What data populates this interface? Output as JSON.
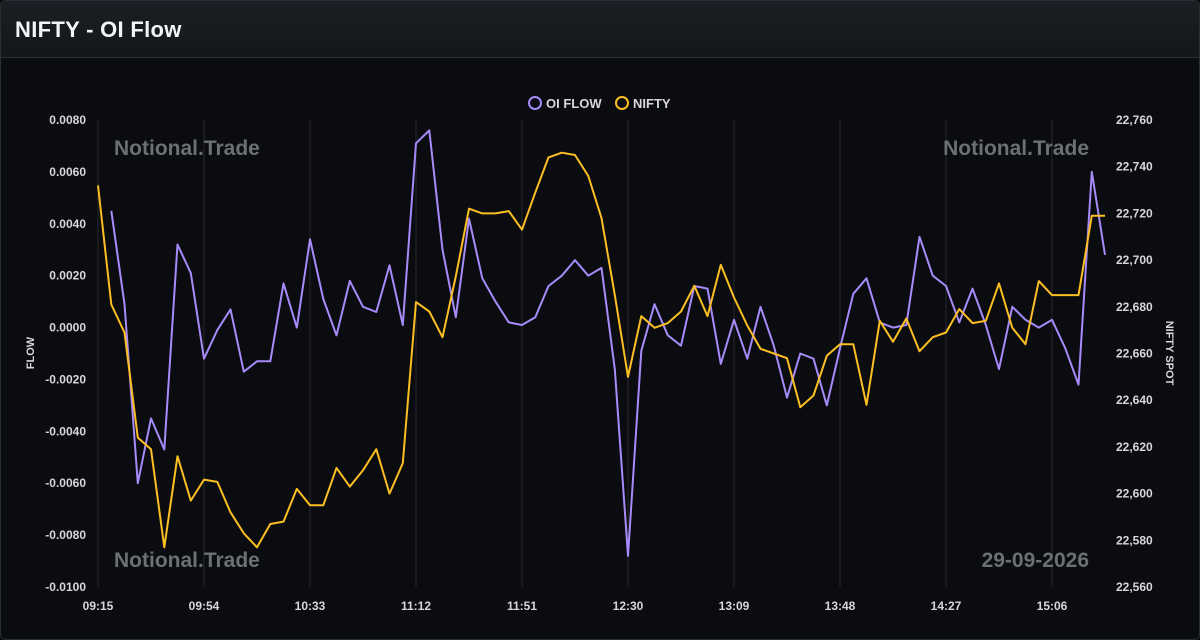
{
  "header": {
    "title": "NIFTY - OI Flow"
  },
  "watermarks": {
    "top_left": "Notional.Trade",
    "top_right": "Notional.Trade",
    "bottom_left": "Notional.Trade",
    "date": "29-09-2026"
  },
  "colors": {
    "oi_flow": "#a78bfa",
    "nifty": "#fbbf24",
    "grid": "#25282d",
    "background": "#0b0c0f"
  },
  "chart_data": {
    "type": "line",
    "legend_position": "top-center",
    "grid": true,
    "x_tick_labels": [
      "09:15",
      "09:54",
      "10:33",
      "11:12",
      "11:51",
      "12:30",
      "13:09",
      "13:48",
      "14:27",
      "15:06"
    ],
    "x_count": 77,
    "ylabel_left": "FLOW",
    "ylabel_right": "NIFTY SPOT",
    "y_left_lim": [
      -0.01,
      0.008
    ],
    "y_left_ticks": [
      "0.0080",
      "0.0060",
      "0.0040",
      "0.0020",
      "0.0000",
      "-0.0020",
      "-0.0040",
      "-0.0060",
      "-0.0080",
      "-0.0100"
    ],
    "y_right_lim": [
      22560,
      22760
    ],
    "y_right_ticks": [
      "22,760",
      "22,740",
      "22,720",
      "22,700",
      "22,680",
      "22,660",
      "22,640",
      "22,620",
      "22,600",
      "22,580",
      "22,560"
    ],
    "series": [
      {
        "name": "OI FLOW",
        "axis": "left",
        "start_index": 1,
        "values": [
          0.0045,
          0.0009,
          -0.006,
          -0.0035,
          -0.0047,
          0.0032,
          0.0021,
          -0.0012,
          -0.0001,
          0.0007,
          -0.0017,
          -0.0013,
          -0.0013,
          0.0017,
          0.0,
          0.0034,
          0.0011,
          -0.0003,
          0.0018,
          0.0008,
          0.0006,
          0.0024,
          0.0001,
          0.0071,
          0.0076,
          0.003,
          0.0004,
          0.0042,
          0.0019,
          0.001,
          0.0002,
          0.0001,
          0.0004,
          0.0016,
          0.002,
          0.0026,
          0.002,
          0.0023,
          -0.0016,
          -0.0088,
          -0.0009,
          0.0009,
          -0.0003,
          -0.0007,
          0.0016,
          0.0015,
          -0.0014,
          0.0003,
          -0.0012,
          0.0008,
          -0.0007,
          -0.0027,
          -0.001,
          -0.0012,
          -0.003,
          -0.0008,
          0.0013,
          0.0019,
          0.0002,
          0.0,
          0.0001,
          0.0035,
          0.002,
          0.0016,
          0.0002,
          0.0015,
          0.0001,
          -0.0016,
          0.0008,
          0.0003,
          0.0,
          0.0003,
          -0.0008,
          -0.0022,
          0.006,
          0.0028
        ]
      },
      {
        "name": "NIFTY",
        "axis": "right",
        "start_index": 0,
        "values": [
          22732,
          22681,
          22669,
          22624,
          22619,
          22577,
          22616,
          22597,
          22606,
          22605,
          22592,
          22583,
          22577,
          22587,
          22588,
          22602,
          22595,
          22595,
          22611,
          22603,
          22610,
          22619,
          22600,
          22613,
          22682,
          22678,
          22667,
          22693,
          22722,
          22720,
          22720,
          22721,
          22713,
          22729,
          22744,
          22746,
          22745,
          22736,
          22718,
          22685,
          22650,
          22676,
          22671,
          22673,
          22678,
          22689,
          22676,
          22698,
          22684,
          22672,
          22662,
          22660,
          22658,
          22637,
          22642,
          22659,
          22664,
          22664,
          22638,
          22674,
          22665,
          22675,
          22661,
          22667,
          22669,
          22679,
          22673,
          22674,
          22690,
          22671,
          22664,
          22691,
          22685,
          22685,
          22685,
          22719,
          22719
        ]
      }
    ]
  }
}
